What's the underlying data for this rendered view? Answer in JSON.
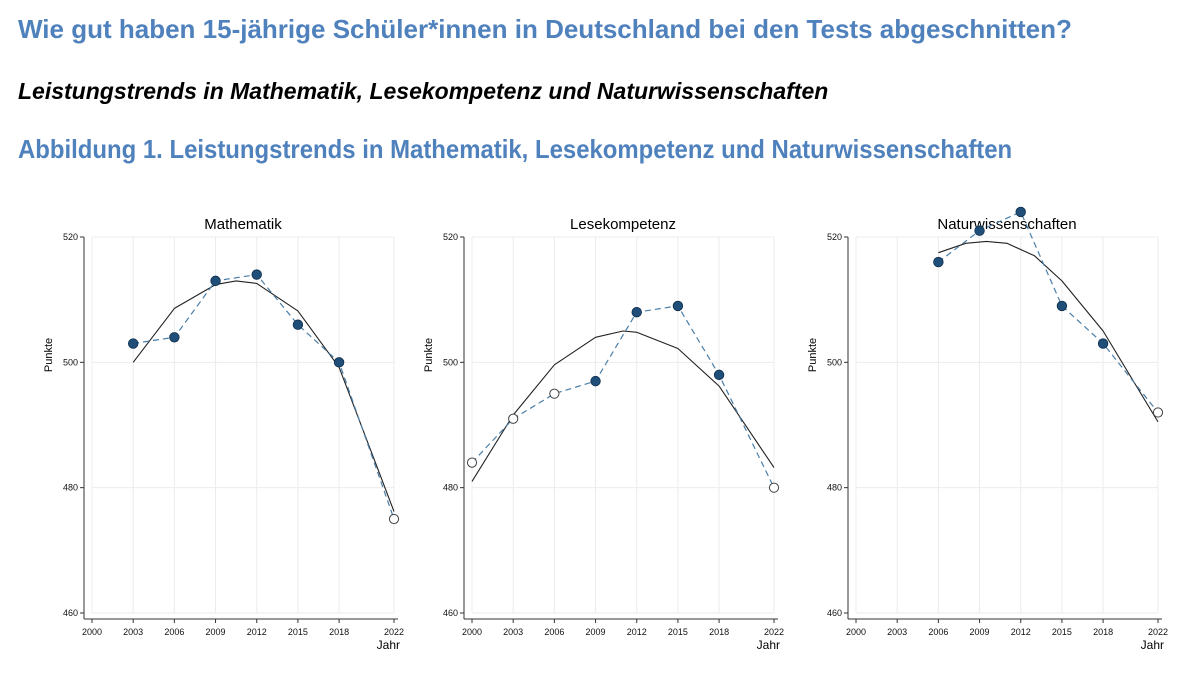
{
  "header": {
    "title": "Wie gut haben 15-jährige Schüler*innen in Deutschland bei den Tests abgeschnitten?",
    "subtitle": "Leistungstrends in Mathematik, Lesekompetenz und Naturwissenschaften",
    "figure_title": "Abbildung 1. Leistungstrends in Mathematik, Lesekompetenz und Naturwissenschaften"
  },
  "chart_data": [
    {
      "type": "line",
      "title": "Mathematik",
      "xlabel": "Jahr",
      "ylabel": "Punkte",
      "xticks": [
        2000,
        2003,
        2006,
        2009,
        2012,
        2015,
        2018,
        2022
      ],
      "yticks": [
        460,
        480,
        500,
        520
      ],
      "xlim": [
        2000,
        2022
      ],
      "ylim": [
        460,
        520
      ],
      "grid": true,
      "colors": {
        "points": "#1f4e79",
        "dashed": "#4a7ea8",
        "trend": "#222222"
      },
      "points": [
        {
          "x": 2003,
          "y": 503,
          "filled": true
        },
        {
          "x": 2006,
          "y": 504,
          "filled": true
        },
        {
          "x": 2009,
          "y": 513,
          "filled": true
        },
        {
          "x": 2012,
          "y": 514,
          "filled": true
        },
        {
          "x": 2015,
          "y": 506,
          "filled": true
        },
        {
          "x": 2018,
          "y": 500,
          "filled": true
        },
        {
          "x": 2022,
          "y": 475,
          "filled": false
        }
      ],
      "trend": {
        "x": [
          2003,
          2006,
          2009,
          2010.5,
          2012,
          2015,
          2018,
          2022
        ],
        "y": [
          500,
          508.6,
          512.4,
          513,
          512.6,
          508.2,
          499.2,
          476.2
        ]
      }
    },
    {
      "type": "line",
      "title": "Lesekompetenz",
      "xlabel": "Jahr",
      "ylabel": "Punkte",
      "xticks": [
        2000,
        2003,
        2006,
        2009,
        2012,
        2015,
        2018,
        2022
      ],
      "yticks": [
        460,
        480,
        500,
        520
      ],
      "xlim": [
        2000,
        2022
      ],
      "ylim": [
        460,
        520
      ],
      "grid": true,
      "colors": {
        "points": "#1f4e79",
        "dashed": "#4a7ea8",
        "trend": "#222222"
      },
      "points": [
        {
          "x": 2000,
          "y": 484,
          "filled": false
        },
        {
          "x": 2003,
          "y": 491,
          "filled": false
        },
        {
          "x": 2006,
          "y": 495,
          "filled": false
        },
        {
          "x": 2009,
          "y": 497,
          "filled": true
        },
        {
          "x": 2012,
          "y": 508,
          "filled": true
        },
        {
          "x": 2015,
          "y": 509,
          "filled": true
        },
        {
          "x": 2018,
          "y": 498,
          "filled": true
        },
        {
          "x": 2022,
          "y": 480,
          "filled": false
        }
      ],
      "trend": {
        "x": [
          2000,
          2003,
          2006,
          2009,
          2011,
          2012,
          2015,
          2018,
          2022
        ],
        "y": [
          481,
          491.6,
          499.6,
          504,
          505,
          504.8,
          502.2,
          496.2,
          483.2
        ]
      }
    },
    {
      "type": "line",
      "title": "Naturwissenschaften",
      "xlabel": "Jahr",
      "ylabel": "Punkte",
      "xticks": [
        2000,
        2003,
        2006,
        2009,
        2012,
        2015,
        2018,
        2022
      ],
      "yticks": [
        460,
        480,
        500,
        520
      ],
      "xlim": [
        2000,
        2022
      ],
      "ylim": [
        460,
        520
      ],
      "grid": true,
      "colors": {
        "points": "#1f4e79",
        "dashed": "#4a7ea8",
        "trend": "#222222"
      },
      "points": [
        {
          "x": 2006,
          "y": 516,
          "filled": true
        },
        {
          "x": 2009,
          "y": 521,
          "filled": true
        },
        {
          "x": 2012,
          "y": 524,
          "filled": true
        },
        {
          "x": 2015,
          "y": 509,
          "filled": true
        },
        {
          "x": 2018,
          "y": 503,
          "filled": true
        },
        {
          "x": 2022,
          "y": 492,
          "filled": false
        }
      ],
      "trend": {
        "x": [
          2006,
          2008,
          2009.5,
          2011,
          2013,
          2015,
          2018,
          2022
        ],
        "y": [
          517.5,
          519,
          519.3,
          519,
          517,
          513,
          505,
          490.5
        ]
      }
    }
  ]
}
